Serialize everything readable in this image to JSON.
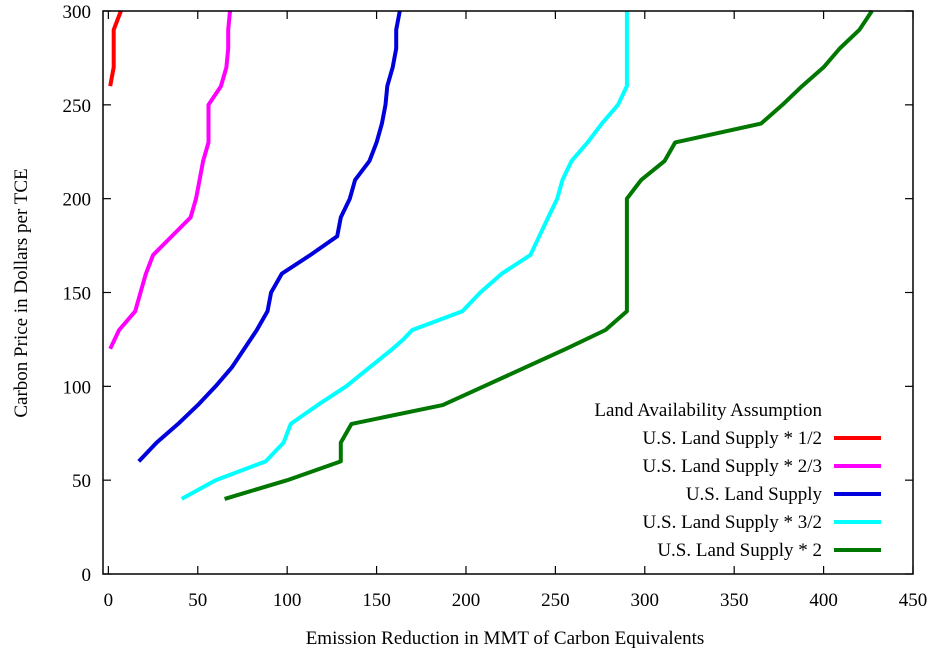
{
  "chart_data": {
    "type": "line",
    "title": "",
    "xlabel": "Emission Reduction in MMT of Carbon Equivalents",
    "ylabel": "Carbon Price in Dollars per TCE",
    "xlim": [
      -3,
      450
    ],
    "ylim": [
      0,
      300
    ],
    "xticks": [
      "0",
      "50",
      "100",
      "150",
      "200",
      "250",
      "300",
      "350",
      "400",
      "450"
    ],
    "yticks": [
      "0",
      "50",
      "100",
      "150",
      "200",
      "250",
      "300"
    ],
    "grid": false,
    "legend": {
      "title": "Land Availability Assumption",
      "placement": "bottom-right"
    },
    "series": [
      {
        "name": "U.S. Land Supply * 1/2",
        "color": "#ff0000",
        "points": [
          [
            1,
            260
          ],
          [
            3,
            270
          ],
          [
            3,
            290
          ],
          [
            7,
            300
          ]
        ]
      },
      {
        "name": "U.S. Land Supply * 2/3",
        "color": "#ff00ff",
        "points": [
          [
            1,
            120
          ],
          [
            6,
            130
          ],
          [
            15,
            140
          ],
          [
            18,
            150
          ],
          [
            21,
            160
          ],
          [
            25,
            170
          ],
          [
            46,
            190
          ],
          [
            49,
            200
          ],
          [
            51,
            210
          ],
          [
            53,
            220
          ],
          [
            56,
            230
          ],
          [
            56,
            240
          ],
          [
            56,
            250
          ],
          [
            63,
            260
          ],
          [
            66,
            270
          ],
          [
            67,
            280
          ],
          [
            67,
            290
          ],
          [
            68,
            300
          ]
        ]
      },
      {
        "name": "U.S. Land Supply",
        "color": "#0000dd",
        "points": [
          [
            17,
            60
          ],
          [
            27,
            70
          ],
          [
            39,
            80
          ],
          [
            50,
            90
          ],
          [
            60,
            100
          ],
          [
            69,
            110
          ],
          [
            76,
            120
          ],
          [
            83,
            130
          ],
          [
            89,
            140
          ],
          [
            91,
            150
          ],
          [
            97,
            160
          ],
          [
            113,
            170
          ],
          [
            128,
            180
          ],
          [
            130,
            190
          ],
          [
            135,
            200
          ],
          [
            138,
            210
          ],
          [
            146,
            220
          ],
          [
            150,
            230
          ],
          [
            153,
            240
          ],
          [
            155,
            250
          ],
          [
            156,
            260
          ],
          [
            159,
            270
          ],
          [
            161,
            280
          ],
          [
            161,
            290
          ],
          [
            163,
            300
          ]
        ]
      },
      {
        "name": "U.S. Land Supply * 3/2",
        "color": "#00ffff",
        "points": [
          [
            41,
            40
          ],
          [
            60,
            50
          ],
          [
            88,
            60
          ],
          [
            98,
            70
          ],
          [
            102,
            80
          ],
          [
            117,
            90
          ],
          [
            133,
            100
          ],
          [
            146,
            110
          ],
          [
            159,
            120
          ],
          [
            165,
            125
          ],
          [
            170,
            130
          ],
          [
            198,
            140
          ],
          [
            208,
            150
          ],
          [
            220,
            160
          ],
          [
            236,
            170
          ],
          [
            241,
            180
          ],
          [
            246,
            190
          ],
          [
            251,
            200
          ],
          [
            254,
            210
          ],
          [
            259,
            220
          ],
          [
            268,
            230
          ],
          [
            276,
            240
          ],
          [
            285,
            250
          ],
          [
            290,
            260
          ],
          [
            290,
            280
          ],
          [
            290,
            300
          ]
        ]
      },
      {
        "name": "U.S. Land Supply * 2",
        "color": "#007700",
        "points": [
          [
            65,
            40
          ],
          [
            100,
            50
          ],
          [
            130,
            60
          ],
          [
            130,
            70
          ],
          [
            136,
            80
          ],
          [
            187,
            90
          ],
          [
            210,
            100
          ],
          [
            233,
            110
          ],
          [
            256,
            120
          ],
          [
            278,
            130
          ],
          [
            290,
            140
          ],
          [
            290,
            170
          ],
          [
            290,
            200
          ],
          [
            298,
            210
          ],
          [
            311,
            220
          ],
          [
            317,
            230
          ],
          [
            365,
            240
          ],
          [
            377,
            250
          ],
          [
            388,
            260
          ],
          [
            400,
            270
          ],
          [
            409,
            280
          ],
          [
            420,
            290
          ],
          [
            427,
            300
          ]
        ]
      }
    ]
  }
}
